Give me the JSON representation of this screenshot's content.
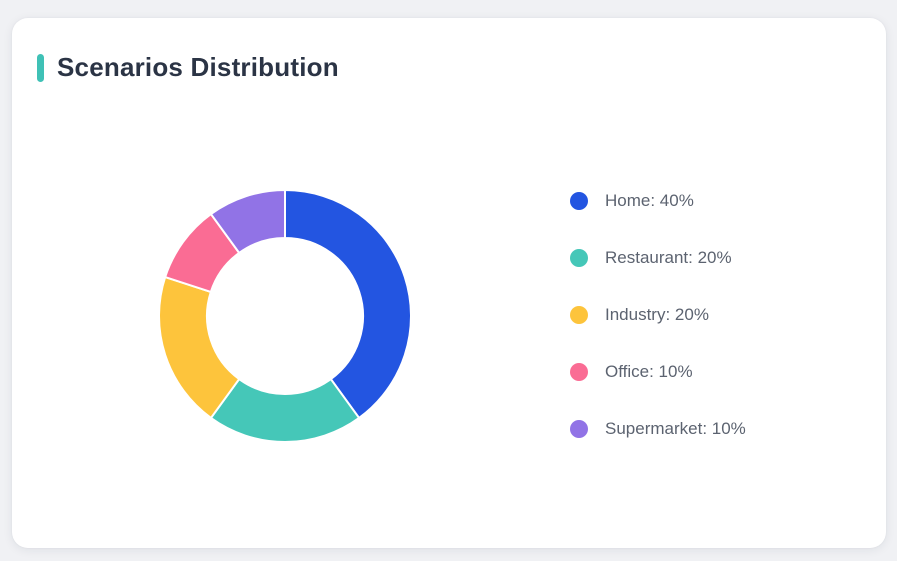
{
  "card": {
    "title": "Scenarios Distribution",
    "accent_color": "#3fc1b6",
    "background": "#ffffff"
  },
  "page": {
    "background": "#f0f1f4"
  },
  "text_colors": {
    "title": "#2b3445",
    "legend": "#5c6370"
  },
  "chart_data": {
    "type": "pie",
    "subtype": "donut",
    "title": "Scenarios Distribution",
    "start_angle_deg": 0,
    "direction": "clockwise",
    "inner_radius_ratio": 0.62,
    "separator_color": "#ffffff",
    "legend_position": "right",
    "categories": [
      "Home",
      "Restaurant",
      "Industry",
      "Office",
      "Supermarket"
    ],
    "values": [
      40,
      20,
      20,
      10,
      10
    ],
    "segments": [
      {
        "label": "Home",
        "value": 40,
        "color": "#2355e1",
        "legend_text": "Home: 40%"
      },
      {
        "label": "Restaurant",
        "value": 20,
        "color": "#45c7b8",
        "legend_text": "Restaurant: 20%"
      },
      {
        "label": "Industry",
        "value": 20,
        "color": "#fdc43c",
        "legend_text": "Industry: 20%"
      },
      {
        "label": "Office",
        "value": 10,
        "color": "#fa6c94",
        "legend_text": "Office: 10%"
      },
      {
        "label": "Supermarket",
        "value": 10,
        "color": "#9173e6",
        "legend_text": "Supermarket: 10%"
      }
    ]
  }
}
